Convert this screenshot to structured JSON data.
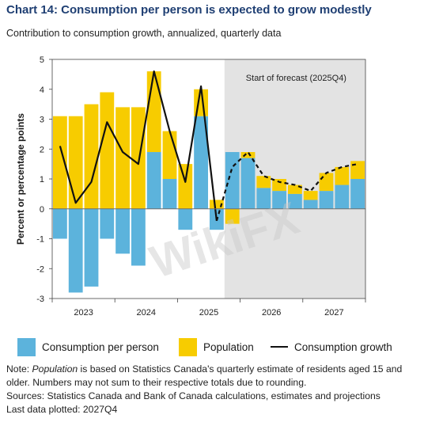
{
  "title": "Chart 14: Consumption per person is expected to grow modestly",
  "subtitle": "Contribution to consumption growth, annualized, quarterly data",
  "forecast_label": "Start of forecast (2025Q4)",
  "watermark_text": "WikiFX",
  "legend": {
    "consumption_per_person": "Consumption per person",
    "population": "Population",
    "consumption_growth": "Consumption growth"
  },
  "notes": {
    "note_prefix": "Note: ",
    "note_italic": "Population",
    "note_rest": " is based on Statistics Canada's quarterly estimate of residents aged 15 and older. Numbers may not sum to their respective totals due to rounding.",
    "sources": "Sources: Statistics Canada and Bank of Canada calculations, estimates and projections",
    "last_data": "Last data plotted: 2027Q4"
  },
  "colors": {
    "consumption_per_person": "#5cb3dc",
    "population": "#f7cc00",
    "consumption_growth": "#111111",
    "forecast_shade": "#e3e3e3",
    "title": "#1f3f73"
  },
  "chart_data": {
    "type": "bar",
    "stacked": true,
    "ylabel": "Percent or percentage points",
    "ylim": [
      -3,
      5
    ],
    "yticks": [
      -3,
      -2,
      -1,
      0,
      1,
      2,
      3,
      4,
      5
    ],
    "grid": false,
    "x_year_labels": [
      "2023",
      "2024",
      "2025",
      "2026",
      "2027"
    ],
    "quarters": [
      "2023Q1",
      "2023Q2",
      "2023Q3",
      "2023Q4",
      "2024Q1",
      "2024Q2",
      "2024Q3",
      "2024Q4",
      "2025Q1",
      "2025Q2",
      "2025Q3",
      "2025Q4",
      "2026Q1",
      "2026Q2",
      "2026Q3",
      "2026Q4",
      "2027Q1",
      "2027Q2",
      "2027Q3",
      "2027Q4"
    ],
    "forecast_start": "2025Q4",
    "series": [
      {
        "name": "Consumption per person",
        "kind": "bar",
        "values": [
          -1.0,
          -2.8,
          -2.6,
          -1.0,
          -1.5,
          -1.9,
          1.9,
          1.0,
          -0.7,
          3.1,
          -0.7,
          1.9,
          1.7,
          0.7,
          0.6,
          0.5,
          0.3,
          0.6,
          0.8,
          1.0
        ]
      },
      {
        "name": "Population",
        "kind": "bar",
        "values": [
          3.1,
          3.1,
          3.5,
          3.9,
          3.4,
          3.4,
          2.7,
          1.6,
          1.5,
          0.9,
          0.3,
          -0.5,
          0.2,
          0.4,
          0.4,
          0.3,
          0.3,
          0.6,
          0.6,
          0.6
        ]
      },
      {
        "name": "Consumption growth",
        "kind": "line",
        "values": [
          2.1,
          0.2,
          0.9,
          2.9,
          1.9,
          1.5,
          4.6,
          2.6,
          0.9,
          4.1,
          -0.4,
          1.4,
          1.9,
          1.1,
          0.9,
          0.8,
          0.6,
          1.2,
          1.4,
          1.5
        ]
      }
    ]
  }
}
